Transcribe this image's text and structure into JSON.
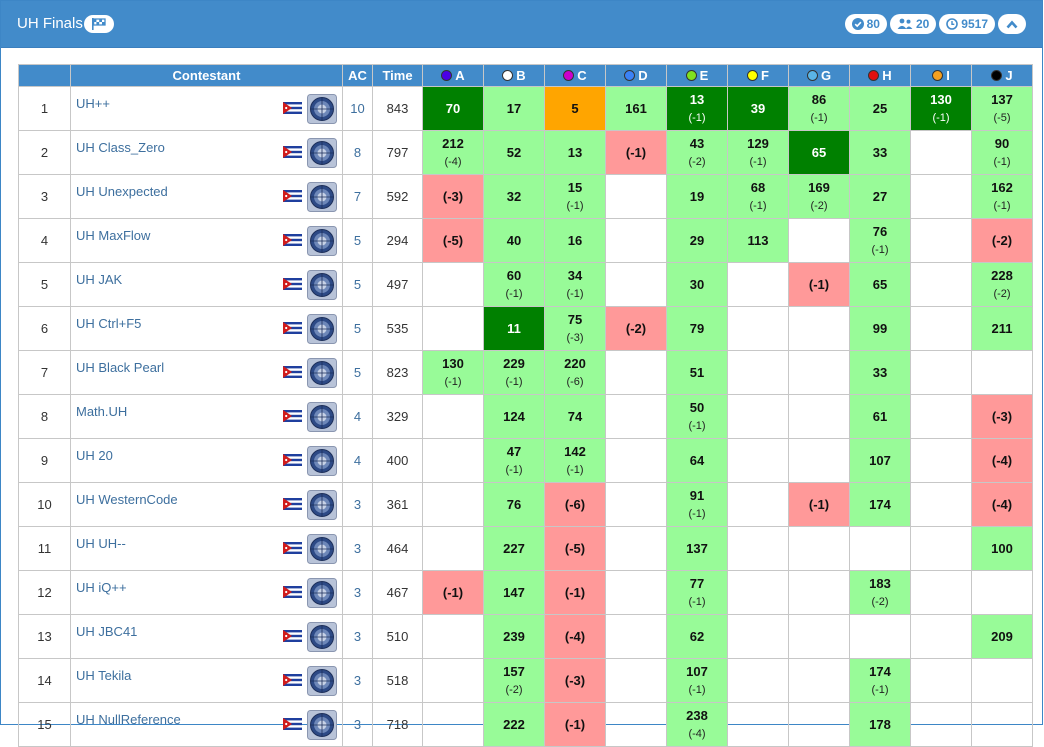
{
  "header": {
    "title": "UH Finals",
    "stats": [
      {
        "icon": "check-circle-icon",
        "value": "80"
      },
      {
        "icon": "users-icon",
        "value": "20"
      },
      {
        "icon": "clock-icon",
        "value": "9517"
      }
    ]
  },
  "table": {
    "columns": {
      "contestant": "Contestant",
      "ac": "AC",
      "time": "Time"
    },
    "problems": [
      {
        "letter": "A",
        "color": "#4b00e6"
      },
      {
        "letter": "B",
        "color": "#ffffff"
      },
      {
        "letter": "C",
        "color": "#cc00cc"
      },
      {
        "letter": "D",
        "color": "#3b82f6"
      },
      {
        "letter": "E",
        "color": "#7fe020"
      },
      {
        "letter": "F",
        "color": "#ffff00"
      },
      {
        "letter": "G",
        "color": "#5ab4e6"
      },
      {
        "letter": "H",
        "color": "#e01010"
      },
      {
        "letter": "I",
        "color": "#f5a020"
      },
      {
        "letter": "J",
        "color": "#000000"
      }
    ],
    "rows": [
      {
        "rank": "1",
        "name": "UH++",
        "ac": "10",
        "time": "843",
        "cells": [
          {
            "s": "first",
            "m": "70",
            "t": ""
          },
          {
            "s": "acc",
            "m": "17",
            "t": ""
          },
          {
            "s": "firstall",
            "m": "5",
            "t": ""
          },
          {
            "s": "acc",
            "m": "161",
            "t": ""
          },
          {
            "s": "first",
            "m": "13",
            "t": "(-1)"
          },
          {
            "s": "first",
            "m": "39",
            "t": ""
          },
          {
            "s": "acc",
            "m": "86",
            "t": "(-1)"
          },
          {
            "s": "acc",
            "m": "25",
            "t": ""
          },
          {
            "s": "first",
            "m": "130",
            "t": "(-1)"
          },
          {
            "s": "acc",
            "m": "137",
            "t": "(-5)"
          }
        ]
      },
      {
        "rank": "2",
        "name": "UH Class_Zero",
        "ac": "8",
        "time": "797",
        "cells": [
          {
            "s": "acc",
            "m": "212",
            "t": "(-4)"
          },
          {
            "s": "acc",
            "m": "52",
            "t": ""
          },
          {
            "s": "acc",
            "m": "13",
            "t": ""
          },
          {
            "s": "rej",
            "m": "(-1)",
            "t": ""
          },
          {
            "s": "acc",
            "m": "43",
            "t": "(-2)"
          },
          {
            "s": "acc",
            "m": "129",
            "t": "(-1)"
          },
          {
            "s": "first",
            "m": "65",
            "t": ""
          },
          {
            "s": "acc",
            "m": "33",
            "t": ""
          },
          {
            "s": "",
            "m": "",
            "t": ""
          },
          {
            "s": "acc",
            "m": "90",
            "t": "(-1)"
          }
        ]
      },
      {
        "rank": "3",
        "name": "UH Unexpected",
        "ac": "7",
        "time": "592",
        "cells": [
          {
            "s": "rej",
            "m": "(-3)",
            "t": ""
          },
          {
            "s": "acc",
            "m": "32",
            "t": ""
          },
          {
            "s": "acc",
            "m": "15",
            "t": "(-1)"
          },
          {
            "s": "",
            "m": "",
            "t": ""
          },
          {
            "s": "acc",
            "m": "19",
            "t": ""
          },
          {
            "s": "acc",
            "m": "68",
            "t": "(-1)"
          },
          {
            "s": "acc",
            "m": "169",
            "t": "(-2)"
          },
          {
            "s": "acc",
            "m": "27",
            "t": ""
          },
          {
            "s": "",
            "m": "",
            "t": ""
          },
          {
            "s": "acc",
            "m": "162",
            "t": "(-1)"
          }
        ]
      },
      {
        "rank": "4",
        "name": "UH MaxFlow",
        "ac": "5",
        "time": "294",
        "cells": [
          {
            "s": "rej",
            "m": "(-5)",
            "t": ""
          },
          {
            "s": "acc",
            "m": "40",
            "t": ""
          },
          {
            "s": "acc",
            "m": "16",
            "t": ""
          },
          {
            "s": "",
            "m": "",
            "t": ""
          },
          {
            "s": "acc",
            "m": "29",
            "t": ""
          },
          {
            "s": "acc",
            "m": "113",
            "t": ""
          },
          {
            "s": "",
            "m": "",
            "t": ""
          },
          {
            "s": "acc",
            "m": "76",
            "t": "(-1)"
          },
          {
            "s": "",
            "m": "",
            "t": ""
          },
          {
            "s": "rej",
            "m": "(-2)",
            "t": ""
          }
        ]
      },
      {
        "rank": "5",
        "name": "UH JAK",
        "ac": "5",
        "time": "497",
        "cells": [
          {
            "s": "",
            "m": "",
            "t": ""
          },
          {
            "s": "acc",
            "m": "60",
            "t": "(-1)"
          },
          {
            "s": "acc",
            "m": "34",
            "t": "(-1)"
          },
          {
            "s": "",
            "m": "",
            "t": ""
          },
          {
            "s": "acc",
            "m": "30",
            "t": ""
          },
          {
            "s": "",
            "m": "",
            "t": ""
          },
          {
            "s": "rej",
            "m": "(-1)",
            "t": ""
          },
          {
            "s": "acc",
            "m": "65",
            "t": ""
          },
          {
            "s": "",
            "m": "",
            "t": ""
          },
          {
            "s": "acc",
            "m": "228",
            "t": "(-2)"
          }
        ]
      },
      {
        "rank": "6",
        "name": "UH Ctrl+F5",
        "ac": "5",
        "time": "535",
        "cells": [
          {
            "s": "",
            "m": "",
            "t": ""
          },
          {
            "s": "first",
            "m": "11",
            "t": ""
          },
          {
            "s": "acc",
            "m": "75",
            "t": "(-3)"
          },
          {
            "s": "rej",
            "m": "(-2)",
            "t": ""
          },
          {
            "s": "acc",
            "m": "79",
            "t": ""
          },
          {
            "s": "",
            "m": "",
            "t": ""
          },
          {
            "s": "",
            "m": "",
            "t": ""
          },
          {
            "s": "acc",
            "m": "99",
            "t": ""
          },
          {
            "s": "",
            "m": "",
            "t": ""
          },
          {
            "s": "acc",
            "m": "211",
            "t": ""
          }
        ]
      },
      {
        "rank": "7",
        "name": "UH Black Pearl",
        "ac": "5",
        "time": "823",
        "cells": [
          {
            "s": "acc",
            "m": "130",
            "t": "(-1)"
          },
          {
            "s": "acc",
            "m": "229",
            "t": "(-1)"
          },
          {
            "s": "acc",
            "m": "220",
            "t": "(-6)"
          },
          {
            "s": "",
            "m": "",
            "t": ""
          },
          {
            "s": "acc",
            "m": "51",
            "t": ""
          },
          {
            "s": "",
            "m": "",
            "t": ""
          },
          {
            "s": "",
            "m": "",
            "t": ""
          },
          {
            "s": "acc",
            "m": "33",
            "t": ""
          },
          {
            "s": "",
            "m": "",
            "t": ""
          },
          {
            "s": "",
            "m": "",
            "t": ""
          }
        ]
      },
      {
        "rank": "8",
        "name": "Math.UH",
        "ac": "4",
        "time": "329",
        "cells": [
          {
            "s": "",
            "m": "",
            "t": ""
          },
          {
            "s": "acc",
            "m": "124",
            "t": ""
          },
          {
            "s": "acc",
            "m": "74",
            "t": ""
          },
          {
            "s": "",
            "m": "",
            "t": ""
          },
          {
            "s": "acc",
            "m": "50",
            "t": "(-1)"
          },
          {
            "s": "",
            "m": "",
            "t": ""
          },
          {
            "s": "",
            "m": "",
            "t": ""
          },
          {
            "s": "acc",
            "m": "61",
            "t": ""
          },
          {
            "s": "",
            "m": "",
            "t": ""
          },
          {
            "s": "rej",
            "m": "(-3)",
            "t": ""
          }
        ]
      },
      {
        "rank": "9",
        "name": "UH 20",
        "ac": "4",
        "time": "400",
        "cells": [
          {
            "s": "",
            "m": "",
            "t": ""
          },
          {
            "s": "acc",
            "m": "47",
            "t": "(-1)"
          },
          {
            "s": "acc",
            "m": "142",
            "t": "(-1)"
          },
          {
            "s": "",
            "m": "",
            "t": ""
          },
          {
            "s": "acc",
            "m": "64",
            "t": ""
          },
          {
            "s": "",
            "m": "",
            "t": ""
          },
          {
            "s": "",
            "m": "",
            "t": ""
          },
          {
            "s": "acc",
            "m": "107",
            "t": ""
          },
          {
            "s": "",
            "m": "",
            "t": ""
          },
          {
            "s": "rej",
            "m": "(-4)",
            "t": ""
          }
        ]
      },
      {
        "rank": "10",
        "name": "UH WesternCode",
        "ac": "3",
        "time": "361",
        "cells": [
          {
            "s": "",
            "m": "",
            "t": ""
          },
          {
            "s": "acc",
            "m": "76",
            "t": ""
          },
          {
            "s": "rej",
            "m": "(-6)",
            "t": ""
          },
          {
            "s": "",
            "m": "",
            "t": ""
          },
          {
            "s": "acc",
            "m": "91",
            "t": "(-1)"
          },
          {
            "s": "",
            "m": "",
            "t": ""
          },
          {
            "s": "rej",
            "m": "(-1)",
            "t": ""
          },
          {
            "s": "acc",
            "m": "174",
            "t": ""
          },
          {
            "s": "",
            "m": "",
            "t": ""
          },
          {
            "s": "rej",
            "m": "(-4)",
            "t": ""
          }
        ]
      },
      {
        "rank": "11",
        "name": "UH UH--",
        "ac": "3",
        "time": "464",
        "cells": [
          {
            "s": "",
            "m": "",
            "t": ""
          },
          {
            "s": "acc",
            "m": "227",
            "t": ""
          },
          {
            "s": "rej",
            "m": "(-5)",
            "t": ""
          },
          {
            "s": "",
            "m": "",
            "t": ""
          },
          {
            "s": "acc",
            "m": "137",
            "t": ""
          },
          {
            "s": "",
            "m": "",
            "t": ""
          },
          {
            "s": "",
            "m": "",
            "t": ""
          },
          {
            "s": "",
            "m": "",
            "t": ""
          },
          {
            "s": "",
            "m": "",
            "t": ""
          },
          {
            "s": "acc",
            "m": "100",
            "t": ""
          }
        ]
      },
      {
        "rank": "12",
        "name": "UH iQ++",
        "ac": "3",
        "time": "467",
        "cells": [
          {
            "s": "rej",
            "m": "(-1)",
            "t": ""
          },
          {
            "s": "acc",
            "m": "147",
            "t": ""
          },
          {
            "s": "rej",
            "m": "(-1)",
            "t": ""
          },
          {
            "s": "",
            "m": "",
            "t": ""
          },
          {
            "s": "acc",
            "m": "77",
            "t": "(-1)"
          },
          {
            "s": "",
            "m": "",
            "t": ""
          },
          {
            "s": "",
            "m": "",
            "t": ""
          },
          {
            "s": "acc",
            "m": "183",
            "t": "(-2)"
          },
          {
            "s": "",
            "m": "",
            "t": ""
          },
          {
            "s": "",
            "m": "",
            "t": ""
          }
        ]
      },
      {
        "rank": "13",
        "name": "UH JBC41",
        "ac": "3",
        "time": "510",
        "cells": [
          {
            "s": "",
            "m": "",
            "t": ""
          },
          {
            "s": "acc",
            "m": "239",
            "t": ""
          },
          {
            "s": "rej",
            "m": "(-4)",
            "t": ""
          },
          {
            "s": "",
            "m": "",
            "t": ""
          },
          {
            "s": "acc",
            "m": "62",
            "t": ""
          },
          {
            "s": "",
            "m": "",
            "t": ""
          },
          {
            "s": "",
            "m": "",
            "t": ""
          },
          {
            "s": "",
            "m": "",
            "t": ""
          },
          {
            "s": "",
            "m": "",
            "t": ""
          },
          {
            "s": "acc",
            "m": "209",
            "t": ""
          }
        ]
      },
      {
        "rank": "14",
        "name": "UH Tekila",
        "ac": "3",
        "time": "518",
        "cells": [
          {
            "s": "",
            "m": "",
            "t": ""
          },
          {
            "s": "acc",
            "m": "157",
            "t": "(-2)"
          },
          {
            "s": "rej",
            "m": "(-3)",
            "t": ""
          },
          {
            "s": "",
            "m": "",
            "t": ""
          },
          {
            "s": "acc",
            "m": "107",
            "t": "(-1)"
          },
          {
            "s": "",
            "m": "",
            "t": ""
          },
          {
            "s": "",
            "m": "",
            "t": ""
          },
          {
            "s": "acc",
            "m": "174",
            "t": "(-1)"
          },
          {
            "s": "",
            "m": "",
            "t": ""
          },
          {
            "s": "",
            "m": "",
            "t": ""
          }
        ]
      },
      {
        "rank": "15",
        "name": "UH NullReference",
        "ac": "3",
        "time": "718",
        "cells": [
          {
            "s": "",
            "m": "",
            "t": ""
          },
          {
            "s": "acc",
            "m": "222",
            "t": ""
          },
          {
            "s": "rej",
            "m": "(-1)",
            "t": ""
          },
          {
            "s": "",
            "m": "",
            "t": ""
          },
          {
            "s": "acc",
            "m": "238",
            "t": "(-4)"
          },
          {
            "s": "",
            "m": "",
            "t": ""
          },
          {
            "s": "",
            "m": "",
            "t": ""
          },
          {
            "s": "acc",
            "m": "178",
            "t": ""
          },
          {
            "s": "",
            "m": "",
            "t": ""
          },
          {
            "s": "",
            "m": "",
            "t": ""
          }
        ]
      }
    ]
  }
}
